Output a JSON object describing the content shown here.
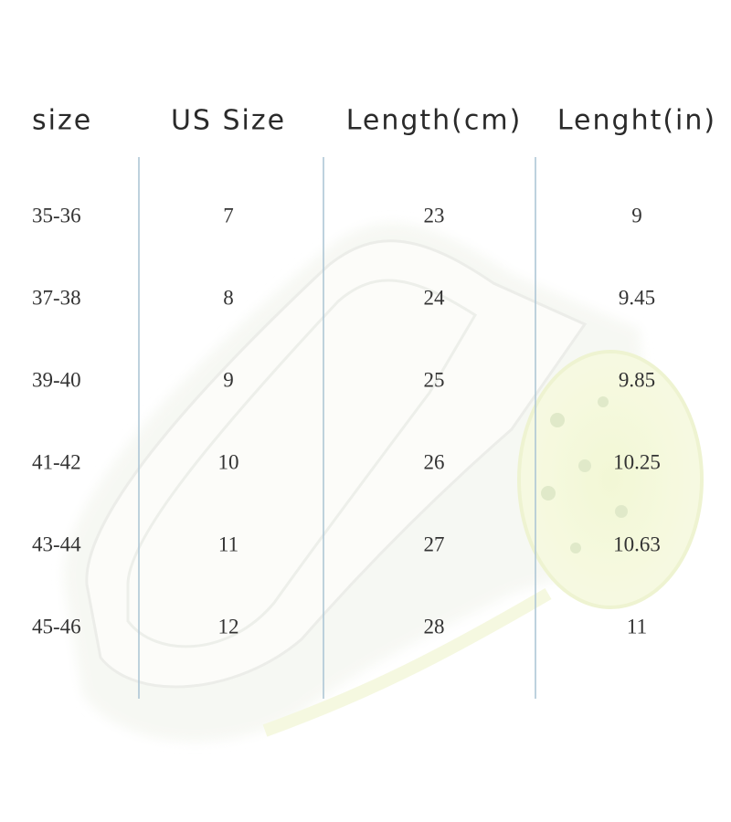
{
  "table": {
    "headers": [
      "size",
      "US Size",
      "Length(cm)",
      "Lenght(in)"
    ],
    "rows": [
      [
        "35-36",
        "7",
        "23",
        "9"
      ],
      [
        "37-38",
        "8",
        "24",
        "9.45"
      ],
      [
        "39-40",
        "9",
        "25",
        "9.85"
      ],
      [
        "41-42",
        "10",
        "26",
        "10.25"
      ],
      [
        "43-44",
        "11",
        "27",
        "10.63"
      ],
      [
        "45-46",
        "12",
        "28",
        "11"
      ]
    ]
  }
}
